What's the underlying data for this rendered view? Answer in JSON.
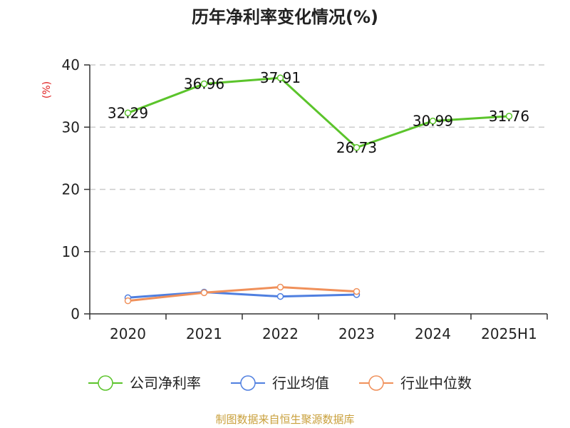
{
  "chart_data": {
    "type": "line",
    "title": "历年净利率变化情况(%)",
    "ylabel": "(%)",
    "xlabel": "",
    "categories": [
      "2020",
      "2021",
      "2022",
      "2023",
      "2024",
      "2025H1"
    ],
    "ylim": [
      0,
      40
    ],
    "yticks": [
      0,
      10,
      20,
      30,
      40
    ],
    "grid": true,
    "legend_position": "bottom",
    "series": [
      {
        "name": "公司净利率",
        "color": "#5bc42b",
        "values": [
          32.29,
          36.96,
          37.91,
          26.73,
          30.99,
          31.76
        ],
        "labels": [
          "32.29",
          "36.96",
          "37.91",
          "26.73",
          "30.99",
          "31.76"
        ]
      },
      {
        "name": "行业均值",
        "color": "#4f7fe0",
        "values": [
          2.6,
          3.5,
          2.8,
          3.1,
          null,
          null
        ]
      },
      {
        "name": "行业中位数",
        "color": "#f0905a",
        "values": [
          2.1,
          3.4,
          4.3,
          3.6,
          null,
          null
        ]
      }
    ]
  },
  "source": "制图数据来自恒生聚源数据库"
}
